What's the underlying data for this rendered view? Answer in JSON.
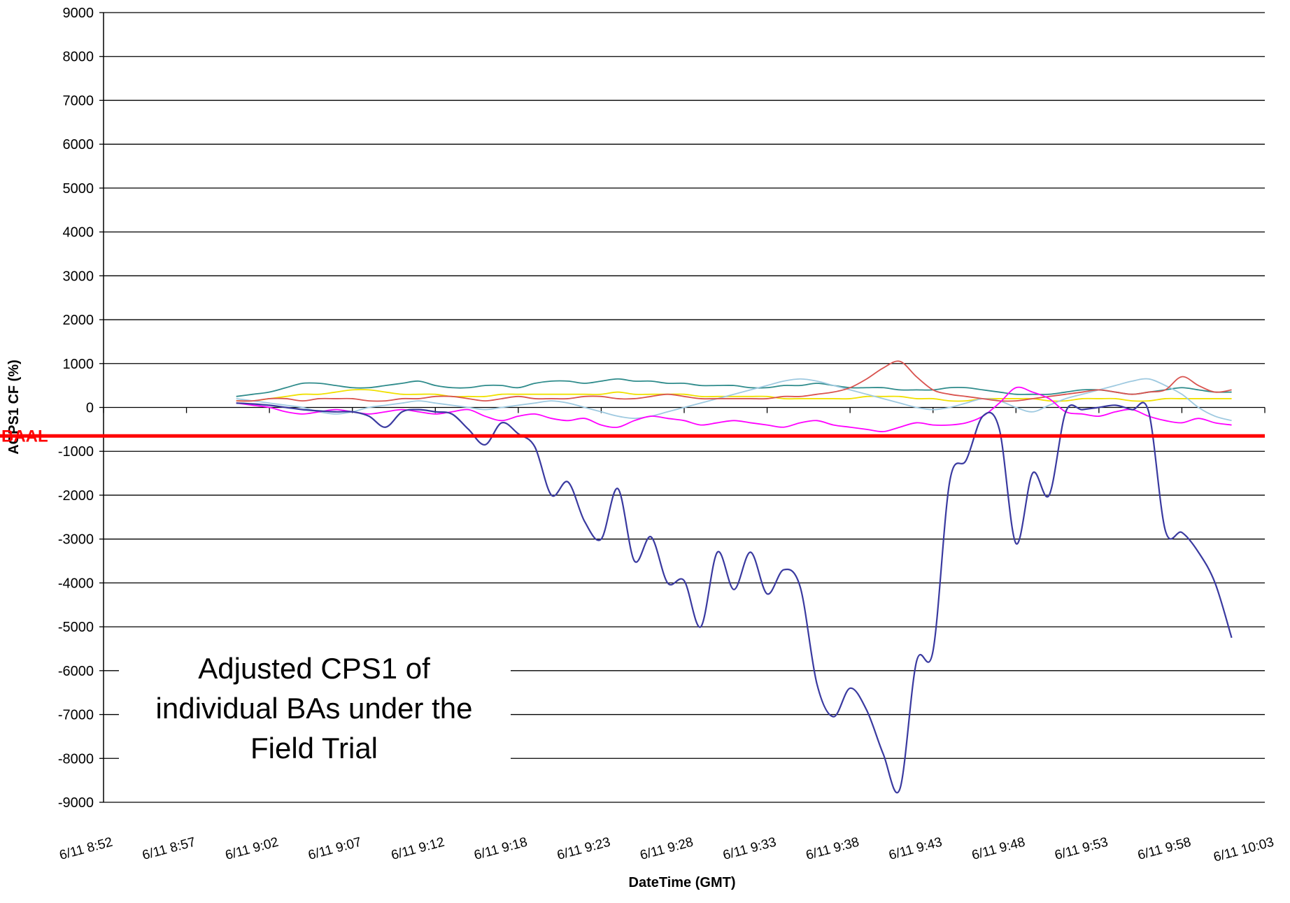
{
  "chart_data": {
    "type": "line",
    "y_label": "ACPS1 CF (%)",
    "x_label": "DateTime (GMT)",
    "categories": [
      "6/11 8:52",
      null,
      null,
      null,
      null,
      "6/11 8:57",
      null,
      null,
      null,
      null,
      "6/11 9:02",
      null,
      null,
      null,
      null,
      "6/11 9:07",
      null,
      null,
      null,
      null,
      "6/11 9:12",
      null,
      null,
      null,
      null,
      "6/11 9:18",
      null,
      null,
      null,
      null,
      "6/11 9:23",
      null,
      null,
      null,
      null,
      "6/11 9:28",
      null,
      null,
      null,
      null,
      "6/11 9:33",
      null,
      null,
      null,
      null,
      "6/11 9:38",
      null,
      null,
      null,
      null,
      "6/11 9:43",
      null,
      null,
      null,
      null,
      "6/11 9:48",
      null,
      null,
      null,
      null,
      "6/11 9:53",
      null,
      null,
      null,
      null,
      "6/11 9:58",
      null,
      null,
      null,
      null,
      "6/11 10:03"
    ],
    "ylim": [
      -9000,
      9000
    ],
    "yticks": [
      9000,
      8000,
      7000,
      6000,
      5000,
      4000,
      3000,
      2000,
      1000,
      0,
      -1000,
      -2000,
      -3000,
      -4000,
      -5000,
      -6000,
      -7000,
      -8000,
      -9000
    ],
    "grid": true,
    "series": [
      {
        "color": "#f0e000",
        "values": [
          null,
          null,
          null,
          null,
          null,
          null,
          null,
          null,
          150,
          150,
          200,
          250,
          300,
          300,
          350,
          400,
          400,
          350,
          300,
          300,
          300,
          250,
          250,
          250,
          300,
          300,
          300,
          300,
          300,
          300,
          300,
          350,
          300,
          300,
          300,
          300,
          250,
          250,
          250,
          250,
          250,
          200,
          200,
          200,
          200,
          200,
          250,
          250,
          250,
          200,
          200,
          150,
          150,
          200,
          200,
          200,
          200,
          150,
          150,
          200,
          200,
          200,
          150,
          150,
          200,
          200,
          200,
          200,
          200,
          null,
          null
        ]
      },
      {
        "color": "#2e8b8b",
        "values": [
          null,
          null,
          null,
          null,
          null,
          null,
          null,
          null,
          250,
          300,
          350,
          450,
          550,
          550,
          500,
          450,
          450,
          500,
          550,
          600,
          500,
          450,
          450,
          500,
          500,
          450,
          550,
          600,
          600,
          550,
          600,
          650,
          600,
          600,
          550,
          550,
          500,
          500,
          500,
          450,
          450,
          500,
          500,
          550,
          500,
          450,
          450,
          450,
          400,
          400,
          400,
          450,
          450,
          400,
          350,
          300,
          300,
          300,
          350,
          400,
          400,
          350,
          300,
          350,
          400,
          450,
          400,
          350,
          350,
          null,
          null
        ]
      },
      {
        "color": "#9ec9e0",
        "values": [
          null,
          null,
          null,
          null,
          null,
          null,
          null,
          null,
          200,
          150,
          100,
          50,
          0,
          -100,
          -150,
          -100,
          0,
          50,
          100,
          150,
          100,
          50,
          0,
          -50,
          0,
          50,
          100,
          150,
          100,
          0,
          -100,
          -200,
          -250,
          -200,
          -100,
          0,
          100,
          200,
          300,
          400,
          500,
          600,
          650,
          600,
          500,
          400,
          300,
          200,
          100,
          0,
          -50,
          0,
          100,
          200,
          150,
          0,
          -100,
          50,
          200,
          300,
          400,
          500,
          600,
          650,
          500,
          300,
          0,
          -200,
          -300,
          null,
          null
        ]
      },
      {
        "color": "#d9534f",
        "values": [
          null,
          null,
          null,
          null,
          null,
          null,
          null,
          null,
          150,
          150,
          200,
          200,
          150,
          200,
          200,
          200,
          150,
          150,
          200,
          200,
          250,
          250,
          200,
          150,
          200,
          250,
          200,
          200,
          200,
          250,
          250,
          200,
          200,
          250,
          300,
          250,
          200,
          200,
          200,
          200,
          200,
          250,
          250,
          300,
          350,
          450,
          650,
          900,
          1050,
          700,
          400,
          300,
          250,
          200,
          150,
          150,
          200,
          250,
          300,
          350,
          400,
          350,
          300,
          350,
          400,
          700,
          500,
          350,
          400,
          null,
          null
        ]
      },
      {
        "color": "#ff00ff",
        "values": [
          null,
          null,
          null,
          null,
          null,
          null,
          null,
          null,
          100,
          50,
          0,
          -100,
          -150,
          -100,
          -50,
          -100,
          -150,
          -100,
          -50,
          -100,
          -150,
          -100,
          -50,
          -200,
          -300,
          -200,
          -150,
          -250,
          -300,
          -250,
          -400,
          -450,
          -300,
          -200,
          -250,
          -300,
          -400,
          -350,
          -300,
          -350,
          -400,
          -450,
          -350,
          -300,
          -400,
          -450,
          -500,
          -550,
          -450,
          -350,
          -400,
          -400,
          -350,
          -200,
          100,
          450,
          350,
          200,
          -100,
          -150,
          -200,
          -100,
          -50,
          -200,
          -300,
          -350,
          -250,
          -350,
          -400,
          null,
          null
        ]
      },
      {
        "color": "#3a3aa0",
        "values": [
          null,
          null,
          null,
          null,
          null,
          null,
          null,
          null,
          100,
          80,
          50,
          0,
          -50,
          -80,
          -100,
          -100,
          -200,
          -450,
          -100,
          -50,
          -100,
          -150,
          -500,
          -850,
          -350,
          -600,
          -900,
          -2000,
          -1700,
          -2600,
          -3000,
          -1850,
          -3500,
          -2950,
          -4000,
          -3950,
          -5000,
          -3300,
          -4150,
          -3300,
          -4250,
          -3700,
          -4100,
          -6300,
          -7050,
          -6400,
          -6900,
          -7900,
          -8700,
          -5800,
          -5550,
          -1700,
          -1200,
          -200,
          -500,
          -3100,
          -1500,
          -2000,
          -100,
          -50,
          0,
          50,
          -50,
          -100,
          -2800,
          -2850,
          -3300,
          -4000,
          -5250,
          null,
          null
        ]
      }
    ],
    "baal": {
      "label": "BAAL",
      "value": -650,
      "color": "#ff0000"
    },
    "annotation": [
      "Adjusted CPS1 of",
      "individual BAs under the",
      "Field Trial"
    ]
  }
}
